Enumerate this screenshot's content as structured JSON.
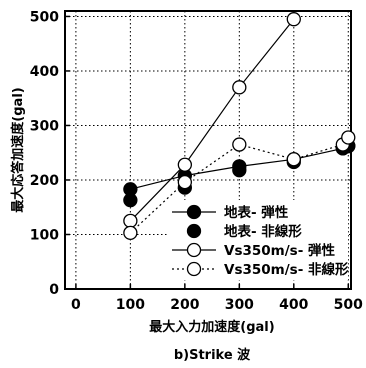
{
  "chart_data": {
    "type": "scatter",
    "title": "",
    "caption": "b)Strike 波",
    "xlabel": "最大入力加速度(gal)",
    "ylabel": "最大応答加速度(gal)",
    "xlim": [
      -20,
      505
    ],
    "ylim": [
      0,
      510
    ],
    "x_ticks": [
      0,
      100,
      200,
      300,
      400,
      500
    ],
    "y_ticks": [
      0,
      100,
      200,
      300,
      400,
      500
    ],
    "grid": true,
    "legend_position": "bottom-right",
    "series": [
      {
        "name": "地表- 弾性",
        "marker": "filled-circle",
        "line": "solid",
        "points": [
          [
            100,
            183
          ],
          [
            200,
            208
          ],
          [
            300,
            225
          ],
          [
            400,
            238
          ],
          [
            490,
            258
          ],
          [
            500,
            263
          ]
        ]
      },
      {
        "name": "地表- 非線形",
        "marker": "filled-circle",
        "line": "none",
        "points": [
          [
            100,
            163
          ],
          [
            200,
            186
          ],
          [
            300,
            218
          ],
          [
            400,
            233
          ],
          [
            490,
            258
          ],
          [
            500,
            262
          ]
        ]
      },
      {
        "name": "Vs350m/s- 弾性",
        "marker": "open-circle",
        "line": "solid",
        "points": [
          [
            100,
            125
          ],
          [
            200,
            228
          ],
          [
            300,
            370
          ],
          [
            400,
            495
          ]
        ]
      },
      {
        "name": "Vs350m/s- 非線形",
        "marker": "open-circle",
        "line": "dotted",
        "points": [
          [
            100,
            103
          ],
          [
            200,
            196
          ],
          [
            300,
            265
          ],
          [
            400,
            238
          ],
          [
            490,
            265
          ],
          [
            500,
            278
          ]
        ]
      }
    ]
  }
}
